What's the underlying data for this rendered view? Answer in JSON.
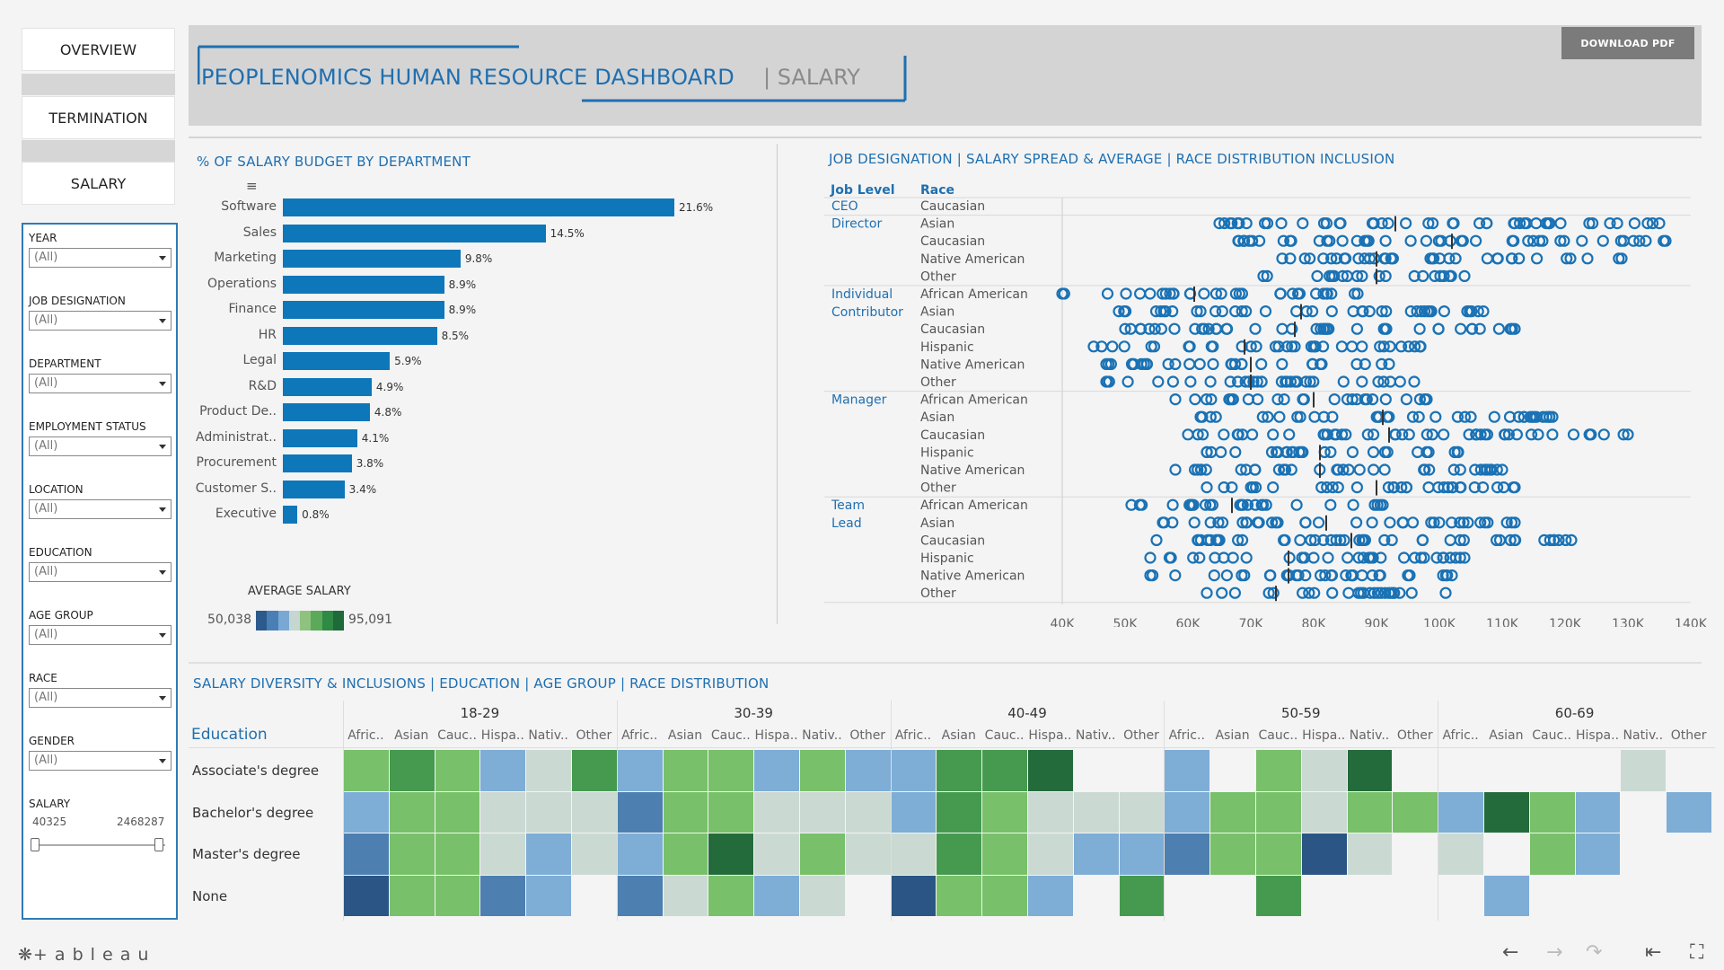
{
  "nav": [
    "OVERVIEW",
    "TERMINATION",
    "SALARY"
  ],
  "filters": [
    {
      "label": "YEAR",
      "value": "(All)"
    },
    {
      "label": "JOB DESIGNATION",
      "value": "(All)"
    },
    {
      "label": "DEPARTMENT",
      "value": "(All)"
    },
    {
      "label": "EMPLOYMENT STATUS",
      "value": "(All)"
    },
    {
      "label": "LOCATION",
      "value": "(All)"
    },
    {
      "label": "EDUCATION",
      "value": "(All)"
    },
    {
      "label": "AGE GROUP",
      "value": "(All)"
    },
    {
      "label": "RACE",
      "value": "(All)"
    },
    {
      "label": "GENDER",
      "value": "(All)"
    }
  ],
  "salary_filter": {
    "label": "SALARY",
    "min": "40325",
    "max": "2468287"
  },
  "header": {
    "title": "PEOPLENOMICS HUMAN RESOURCE DASHBOARD",
    "subtitle": "| SALARY",
    "download": "DOWNLOAD PDF"
  },
  "bar_section_title": "% OF SALARY BUDGET BY DEPARTMENT",
  "legend": {
    "title": "AVERAGE SALARY",
    "min": "50,038",
    "max": "95,091",
    "colors": [
      "#2c5a8c",
      "#4a7fb5",
      "#7aa8d4",
      "#c5d7d0",
      "#8fc27f",
      "#5aaa5a",
      "#2e8a44",
      "#1e6a38"
    ]
  },
  "spread_section_title": "JOB DESIGNATION | SALARY SPREAD & AVERAGE | RACE DISTRIBUTION INCLUSION",
  "spread_headers": {
    "level": "Job Level",
    "race": "Race"
  },
  "heat_section_title": "SALARY DIVERSITY & INCLUSIONS | EDUCATION | AGE GROUP | RACE DISTRIBUTION",
  "heat_row_header": "Education",
  "footer": {
    "brand": "+ a b l e a u"
  },
  "chart_data": [
    {
      "type": "bar",
      "title": "% OF SALARY BUDGET BY DEPARTMENT",
      "categories": [
        "Software",
        "Sales",
        "Marketing",
        "Operations",
        "Finance",
        "HR",
        "Legal",
        "R&D",
        "Product De..",
        "Administrat..",
        "Procurement",
        "Customer S..",
        "Executive"
      ],
      "values": [
        21.6,
        14.5,
        9.8,
        8.9,
        8.9,
        8.5,
        5.9,
        4.9,
        4.8,
        4.1,
        3.8,
        3.4,
        0.8
      ],
      "labels": [
        "21.6%",
        "14.5%",
        "9.8%",
        "8.9%",
        "8.9%",
        "8.5%",
        "5.9%",
        "4.9%",
        "4.8%",
        "4.1%",
        "3.8%",
        "3.4%",
        "0.8%"
      ]
    },
    {
      "type": "scatter",
      "title": "JOB DESIGNATION | SALARY SPREAD & AVERAGE | RACE DISTRIBUTION INCLUSION",
      "x_ticks": [
        "40K",
        "50K",
        "60K",
        "70K",
        "80K",
        "90K",
        "100K",
        "110K",
        "120K",
        "130K",
        "140K"
      ],
      "xlim": [
        40000,
        140000
      ],
      "groups": [
        {
          "level": "CEO",
          "rows": [
            {
              "race": "Caucasian",
              "range": [],
              "avg": null
            }
          ]
        },
        {
          "level": "Director",
          "rows": [
            {
              "race": "Asian",
              "range": [
                65000,
                135000
              ],
              "avg": 93000
            },
            {
              "race": "Caucasian",
              "range": [
                68000,
                136000
              ],
              "avg": 102000
            },
            {
              "race": "Native American",
              "range": [
                75000,
                129000
              ],
              "avg": 90000
            },
            {
              "race": "Other",
              "range": [
                72000,
                104000
              ],
              "avg": 90000
            }
          ]
        },
        {
          "level": "Individual Contributor",
          "rows": [
            {
              "race": "African American",
              "range": [
                40000,
                87000
              ],
              "avg": 61000
            },
            {
              "race": "Asian",
              "range": [
                49000,
                107000
              ],
              "avg": 78000
            },
            {
              "race": "Caucasian",
              "range": [
                50000,
                112000
              ],
              "avg": 77000
            },
            {
              "race": "Hispanic",
              "range": [
                45000,
                97000
              ],
              "avg": 69000
            },
            {
              "race": "Native American",
              "range": [
                47000,
                92000
              ],
              "avg": 70000
            },
            {
              "race": "Other",
              "range": [
                47000,
                96000
              ],
              "avg": 70000
            }
          ]
        },
        {
          "level": "Manager",
          "rows": [
            {
              "race": "African American",
              "range": [
                58000,
                98000
              ],
              "avg": 80000
            },
            {
              "race": "Asian",
              "range": [
                62000,
                118000
              ],
              "avg": 91000
            },
            {
              "race": "Caucasian",
              "range": [
                60000,
                130000
              ],
              "avg": 92000
            },
            {
              "race": "Hispanic",
              "range": [
                63000,
                103000
              ],
              "avg": 81000
            },
            {
              "race": "Native American",
              "range": [
                58000,
                110000
              ],
              "avg": 81000
            },
            {
              "race": "Other",
              "range": [
                63000,
                112000
              ],
              "avg": 90000
            }
          ]
        },
        {
          "level": "Team Lead",
          "rows": [
            {
              "race": "African American",
              "range": [
                51000,
                91000
              ],
              "avg": 67000
            },
            {
              "race": "Asian",
              "range": [
                56000,
                112000
              ],
              "avg": 82000
            },
            {
              "race": "Caucasian",
              "range": [
                55000,
                121000
              ],
              "avg": 86000
            },
            {
              "race": "Hispanic",
              "range": [
                54000,
                104000
              ],
              "avg": 76000
            },
            {
              "race": "Native American",
              "range": [
                54000,
                102000
              ],
              "avg": 76000
            },
            {
              "race": "Other",
              "range": [
                63000,
                101000
              ],
              "avg": 74000
            }
          ]
        }
      ]
    },
    {
      "type": "heatmap",
      "title": "SALARY DIVERSITY & INCLUSIONS | EDUCATION | AGE GROUP | RACE DISTRIBUTION",
      "age_groups": [
        "18-29",
        "30-39",
        "40-49",
        "50-59",
        "60-69"
      ],
      "races": [
        "Afric..",
        "Asian",
        "Cauc..",
        "Hispa..",
        "Nativ..",
        "Other"
      ],
      "rows": [
        "Associate's degree",
        "Bachelor's degree",
        "Master's degree",
        "None"
      ],
      "colors": [
        [
          "#78c06a",
          "#459a4f",
          "#78c06a",
          "#7eadd6",
          "#cbd9d3",
          "#459a4f",
          "#7eadd6",
          "#78c06a",
          "#78c06a",
          "#7eadd6",
          "#78c06a",
          "#7eadd6",
          "#7eadd6",
          "#459a4f",
          "#459a4f",
          "#246b3c",
          "",
          "",
          "#7eadd6",
          "",
          "#78c06a",
          "#cbd9d3",
          "#246b3c",
          "",
          "",
          "",
          "",
          "",
          "#cbd9d3",
          ""
        ],
        [
          "#7eadd6",
          "#78c06a",
          "#78c06a",
          "#cbd9d3",
          "#cbd9d3",
          "#cbd9d3",
          "#4d7fb0",
          "#78c06a",
          "#78c06a",
          "#cbd9d3",
          "#cbd9d3",
          "#cbd9d3",
          "#7eadd6",
          "#459a4f",
          "#78c06a",
          "#cbd9d3",
          "#cbd9d3",
          "#cbd9d3",
          "#7eadd6",
          "#78c06a",
          "#78c06a",
          "#cbd9d3",
          "#78c06a",
          "#78c06a",
          "#7eadd6",
          "#246b3c",
          "#78c06a",
          "#7eadd6",
          "",
          "#7eadd6"
        ],
        [
          "#4d7fb0",
          "#78c06a",
          "#78c06a",
          "#cbd9d3",
          "#7eadd6",
          "#cbd9d3",
          "#7eadd6",
          "#78c06a",
          "#246b3c",
          "#cbd9d3",
          "#78c06a",
          "#cbd9d3",
          "#cbd9d3",
          "#459a4f",
          "#78c06a",
          "#cbd9d3",
          "#7eadd6",
          "#7eadd6",
          "#4d7fb0",
          "#78c06a",
          "#78c06a",
          "#2b5585",
          "#cbd9d3",
          "",
          "#cbd9d3",
          "",
          "#78c06a",
          "#7eadd6",
          "",
          ""
        ],
        [
          "#2b5585",
          "#78c06a",
          "#78c06a",
          "#4d7fb0",
          "#7eadd6",
          "",
          "#4d7fb0",
          "#cbd9d3",
          "#78c06a",
          "#7eadd6",
          "#cbd9d3",
          "",
          "#2b5585",
          "#78c06a",
          "#78c06a",
          "#7eadd6",
          "",
          "#459a4f",
          "",
          "",
          "#459a4f",
          "",
          "",
          "",
          "",
          "#7eadd6",
          "",
          "",
          "",
          ""
        ]
      ]
    }
  ]
}
